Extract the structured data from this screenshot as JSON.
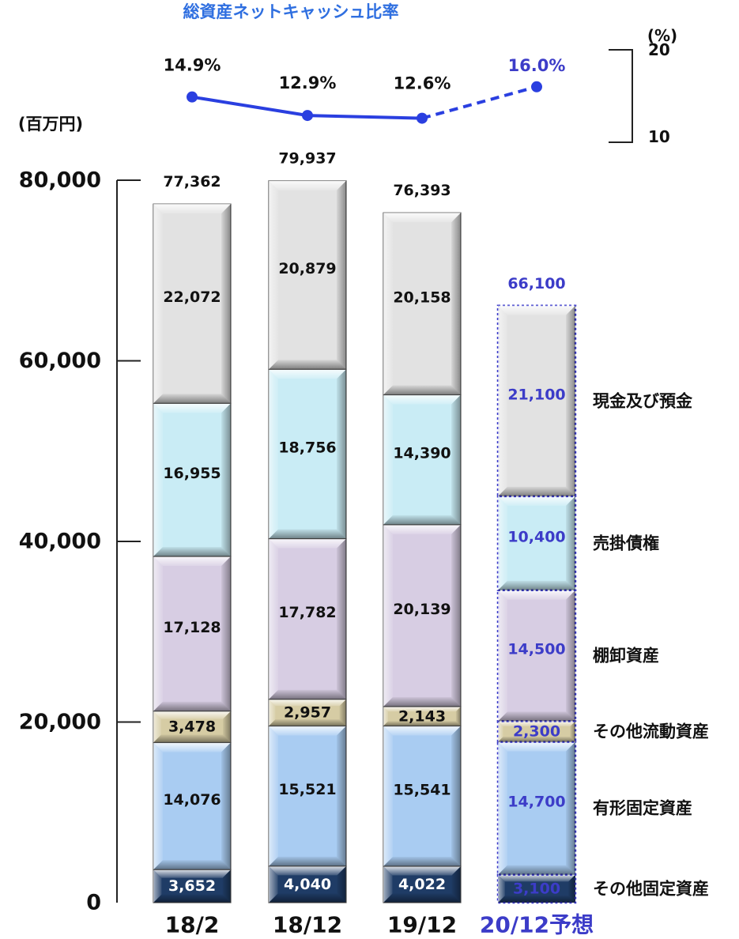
{
  "chart_data": [
    {
      "type": "line",
      "title": "総資産ネットキャッシュ比率",
      "unit_label": "(%)",
      "x": [
        "18/2",
        "18/12",
        "19/12",
        "20/12予想"
      ],
      "values": [
        14.9,
        12.9,
        12.6,
        16.0
      ],
      "value_labels": [
        "14.9%",
        "12.9%",
        "12.6%",
        "16.0%"
      ],
      "forecast_index": 3,
      "ylim": [
        10,
        20
      ],
      "yticks": [
        "20",
        "10"
      ],
      "line_style": "solid, dashed for forecast segment"
    },
    {
      "type": "bar",
      "stacked": true,
      "unit_label": "(百万円)",
      "categories": [
        "18/2",
        "18/12",
        "19/12",
        "20/12予想"
      ],
      "forecast_index": 3,
      "ylim": [
        0,
        80000
      ],
      "yticks": [
        "0",
        "20,000",
        "40,000",
        "60,000",
        "80,000"
      ],
      "totals": [
        77362,
        79937,
        76393,
        66100
      ],
      "total_labels": [
        "77,362",
        "79,937",
        "76,393",
        "66,100"
      ],
      "series": [
        {
          "name": "その他固定資産",
          "values": [
            3652,
            4040,
            4022,
            3100
          ],
          "labels": [
            "3,652",
            "4,040",
            "4,022",
            "3,100"
          ],
          "color": "#1f3c66"
        },
        {
          "name": "有形固定資産",
          "values": [
            14076,
            15521,
            15541,
            14700
          ],
          "labels": [
            "14,076",
            "15,521",
            "15,541",
            "14,700"
          ],
          "color": "#a9ccf2"
        },
        {
          "name": "その他流動資産",
          "values": [
            3478,
            2957,
            2143,
            2300
          ],
          "labels": [
            "3,478",
            "2,957",
            "2,143",
            "2,300"
          ],
          "color": "#d6cca4"
        },
        {
          "name": "棚卸資産",
          "values": [
            17128,
            17782,
            20139,
            14500
          ],
          "labels": [
            "17,128",
            "17,782",
            "20,139",
            "14,500"
          ],
          "color": "#d7cde3"
        },
        {
          "name": "売掛債権",
          "values": [
            16955,
            18756,
            14390,
            10400
          ],
          "labels": [
            "16,955",
            "18,756",
            "14,390",
            "10,400"
          ],
          "color": "#c9ecf5"
        },
        {
          "name": "現金及び預金",
          "values": [
            22072,
            20879,
            20158,
            21100
          ],
          "labels": [
            "22,072",
            "20,879",
            "20,158",
            "21,100"
          ],
          "color": "#e2e2e2"
        }
      ],
      "legend_placement": "right"
    }
  ],
  "colors": {
    "forecast_accent": "#3c3cc8",
    "line": "#2a3fe0",
    "text": "#111111"
  }
}
